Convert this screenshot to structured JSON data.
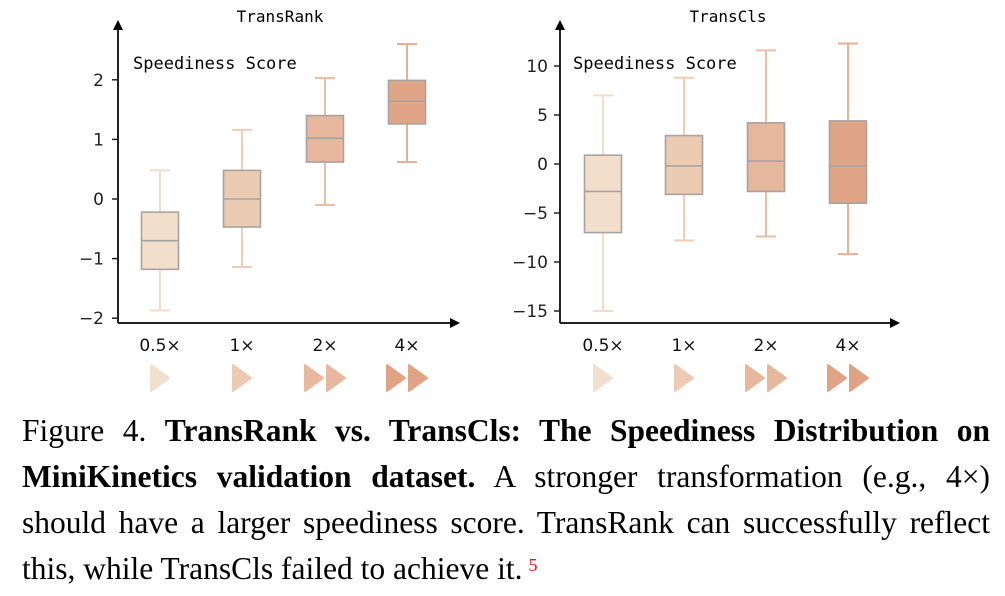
{
  "chart_data": [
    {
      "type": "box",
      "title": "TransRank",
      "ylabel": "Speediness Score",
      "xlabel": "",
      "categories": [
        "0.5×",
        "1×",
        "2×",
        "4×"
      ],
      "yticks": [
        -2,
        -1,
        0,
        1,
        2
      ],
      "ytick_labels": [
        "−2",
        "−1",
        "0",
        "1",
        "2"
      ],
      "ylim": [
        -2.1,
        3.0
      ],
      "grid": false,
      "boxes": [
        {
          "category": "0.5×",
          "whisker_low": -1.87,
          "q1": -1.18,
          "median": -0.7,
          "q3": -0.22,
          "whisker_high": 0.48
        },
        {
          "category": "1×",
          "whisker_low": -1.14,
          "q1": -0.47,
          "median": 0.0,
          "q3": 0.48,
          "whisker_high": 1.16
        },
        {
          "category": "2×",
          "whisker_low": -0.1,
          "q1": 0.62,
          "median": 1.02,
          "q3": 1.4,
          "whisker_high": 2.03
        },
        {
          "category": "4×",
          "whisker_low": 0.62,
          "q1": 1.26,
          "median": 1.64,
          "q3": 1.99,
          "whisker_high": 2.6
        }
      ],
      "speed_icons": [
        1,
        1,
        2,
        2
      ]
    },
    {
      "type": "box",
      "title": "TransCls",
      "ylabel": "Speediness Score",
      "xlabel": "",
      "categories": [
        "0.5×",
        "1×",
        "2×",
        "4×"
      ],
      "yticks": [
        -15,
        -10,
        -5,
        0,
        5,
        10
      ],
      "ytick_labels": [
        "−15",
        "−10",
        "−5",
        "0",
        "5",
        "10"
      ],
      "ylim": [
        -16,
        14
      ],
      "grid": false,
      "boxes": [
        {
          "category": "0.5×",
          "whisker_low": -15.0,
          "q1": -7.0,
          "median": -2.8,
          "q3": 0.9,
          "whisker_high": 7.0
        },
        {
          "category": "1×",
          "whisker_low": -7.8,
          "q1": -3.1,
          "median": -0.2,
          "q3": 2.9,
          "whisker_high": 8.8
        },
        {
          "category": "2×",
          "whisker_low": -7.4,
          "q1": -2.8,
          "median": 0.3,
          "q3": 4.2,
          "whisker_high": 11.6
        },
        {
          "category": "4×",
          "whisker_low": -9.2,
          "q1": -4.0,
          "median": -0.2,
          "q3": 4.4,
          "whisker_high": 12.3
        }
      ],
      "speed_icons": [
        1,
        1,
        2,
        2
      ]
    }
  ],
  "colors": {
    "box_fills": [
      "#f1dfcb",
      "#ebcbb1",
      "#e6b79c",
      "#e0a586"
    ],
    "whiskers": [
      "#f2dccb",
      "#efcdb8",
      "#ebbfa6",
      "#e7b196"
    ],
    "box_edge": "#a9a39f",
    "icons": [
      "#f2dfcd",
      "#eccab3",
      "#e7b79e",
      "#e0a386"
    ],
    "footnote": "#e8141c"
  },
  "caption": {
    "prefix": "Figure 4. ",
    "bold": "TransRank vs. TransCls: The Speediness Distribution on MiniKinetics validation dataset.",
    "text": " A stronger transformation (e.g., 4×) should have a larger speediness score. TransRank can successfully reflect this, while TransCls failed to achieve it.",
    "footnote": "5"
  }
}
